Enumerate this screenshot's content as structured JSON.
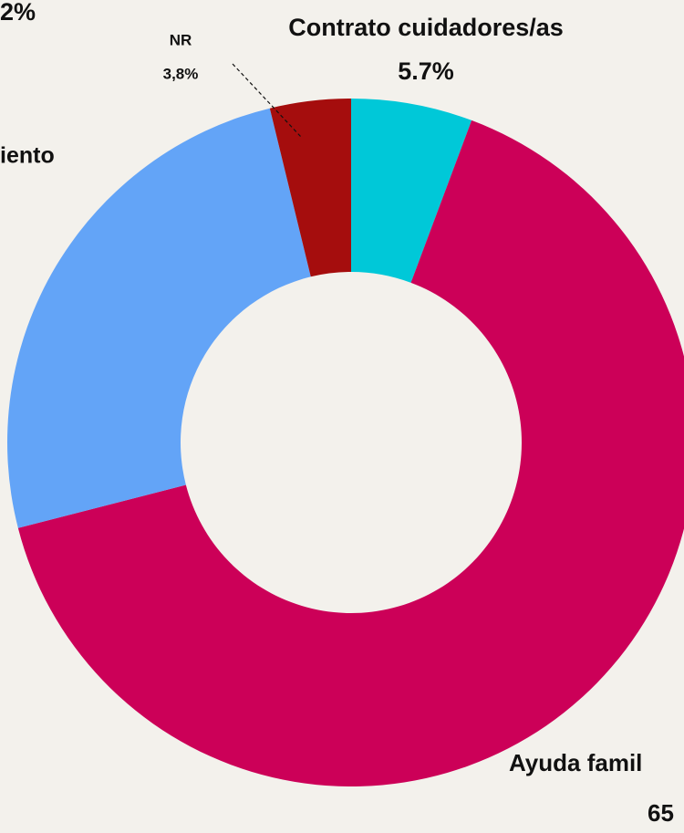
{
  "chart_data": {
    "type": "donut",
    "categories": [
      "Contrato cuidadores/as",
      "Ayuda famil",
      "iento",
      "NR"
    ],
    "values": [
      5.7,
      65.3,
      25.2,
      3.8
    ],
    "value_labels": [
      "5.7%",
      "65",
      null,
      "3,8%"
    ],
    "colors": [
      "#00c8d8",
      "#cc0058",
      "#63a4f7",
      "#a50d0d"
    ],
    "annotations": [
      "2%"
    ]
  }
}
